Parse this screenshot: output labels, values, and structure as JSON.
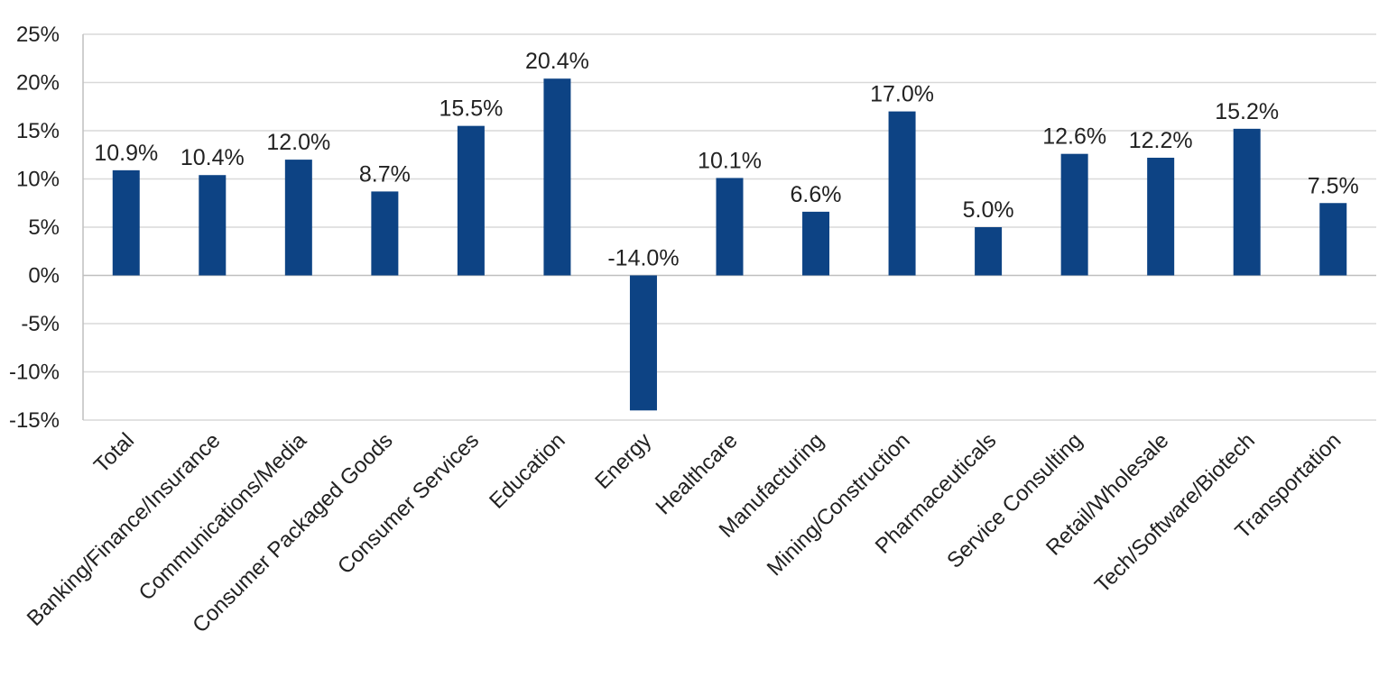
{
  "chart_data": {
    "type": "bar",
    "categories": [
      "Total",
      "Banking/Finance/Insurance",
      "Communications/Media",
      "Consumer Packaged Goods",
      "Consumer Services",
      "Education",
      "Energy",
      "Healthcare",
      "Manufacturing",
      "Mining/Construction",
      "Pharmaceuticals",
      "Service Consulting",
      "Retail/Wholesale",
      "Tech/Software/Biotech",
      "Transportation"
    ],
    "values": [
      10.9,
      10.4,
      12.0,
      8.7,
      15.5,
      20.4,
      -14.0,
      10.1,
      6.6,
      17.0,
      5.0,
      12.6,
      12.2,
      15.2,
      7.5
    ],
    "data_labels": [
      "10.9%",
      "10.4%",
      "12.0%",
      "8.7%",
      "15.5%",
      "20.4%",
      "-14.0%",
      "10.1%",
      "6.6%",
      "17.0%",
      "5.0%",
      "12.6%",
      "12.2%",
      "15.2%",
      "7.5%"
    ],
    "yticks": [
      25,
      20,
      15,
      10,
      5,
      0,
      -5,
      -10,
      -15
    ],
    "ytick_labels": [
      "25%",
      "20%",
      "15%",
      "10%",
      "5%",
      "0%",
      "-5%",
      "-10%",
      "-15%"
    ],
    "ylim": [
      -15,
      25
    ],
    "title": "",
    "xlabel": "",
    "ylabel": "",
    "grid": true,
    "legend": "none",
    "colors": {
      "bar": "#0d4384",
      "grid": "#d9d9d9",
      "axis": "#bfbfbf",
      "text": "#222222"
    }
  }
}
